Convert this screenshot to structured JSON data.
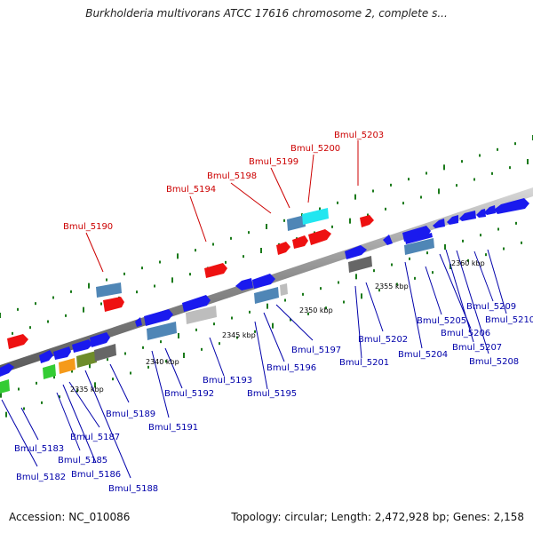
{
  "title": "Burkholderia multivorans ATCC 17616 chromosome 2, complete s...",
  "footer": {
    "accession": "Accession: NC_010086",
    "summary": "Topology: circular; Length: 2,472,928 bp; Genes: 2,158"
  },
  "scale_labels": [
    "2335 kbp",
    "2340 kbp",
    "2345 kbp",
    "2350 kbp",
    "2355 kbp",
    "2360 kbp"
  ],
  "genes_highlighted": [
    "Bmul_5190",
    "Bmul_5194",
    "Bmul_5198",
    "Bmul_5199",
    "Bmul_5200",
    "Bmul_5203"
  ],
  "genes": [
    "Bmul_5182",
    "Bmul_5183",
    "Bmul_5185",
    "Bmul_5186",
    "Bmul_5187",
    "Bmul_5188",
    "Bmul_5189",
    "Bmul_5191",
    "Bmul_5192",
    "Bmul_5193",
    "Bmul_5195",
    "Bmul_5196",
    "Bmul_5197",
    "Bmul_5201",
    "Bmul_5202",
    "Bmul_5204",
    "Bmul_5205",
    "Bmul_5206",
    "Bmul_5207",
    "Bmul_5208",
    "Bmul_5209",
    "Bmul_5210"
  ],
  "colors": {
    "backbone": "#9a9a9a",
    "highlight_gene": "#ee1111",
    "gene_blue": "#1a1aee",
    "feature_steel": "#4f86b6",
    "feature_cyan": "#22e6f0",
    "feature_gray": "#bdbdbd",
    "feature_dark": "#666666",
    "feature_green": "#33cc33",
    "feature_orange": "#f59a1a",
    "feature_olive": "#6e8c2a",
    "tick_green": "#1a7a1a"
  }
}
